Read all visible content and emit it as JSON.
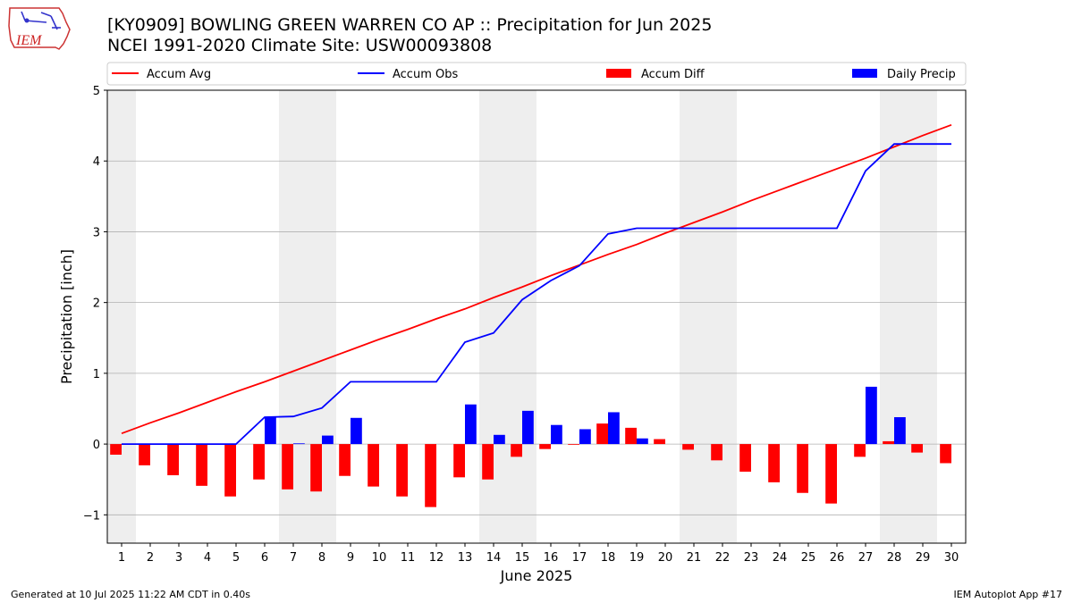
{
  "title_line1": "[KY0909] BOWLING GREEN WARREN CO AP :: Precipitation for Jun 2025",
  "title_line2": "NCEI 1991-2020 Climate Site: USW00093808",
  "logo_text": "IEM",
  "footer_left": "Generated at 10 Jul 2025 11:22 AM CDT in 0.40s",
  "footer_right": "IEM Autoplot App #17",
  "colors": {
    "avg": "#ff0000",
    "obs": "#0000ff",
    "diff": "#ff0000",
    "daily": "#0000ff",
    "weekend": "#eeeeee",
    "grid": "#b0b0b0"
  },
  "chart_data": {
    "type": "bar",
    "xlabel": "June 2025",
    "ylabel": "Precipitation [inch]",
    "x": [
      1,
      2,
      3,
      4,
      5,
      6,
      7,
      8,
      9,
      10,
      11,
      12,
      13,
      14,
      15,
      16,
      17,
      18,
      19,
      20,
      21,
      22,
      23,
      24,
      25,
      26,
      27,
      28,
      29,
      30
    ],
    "xlim": [
      0.5,
      30.5
    ],
    "ylim": [
      -1.4,
      5
    ],
    "yticks": [
      -1,
      0,
      1,
      2,
      3,
      4,
      5
    ],
    "ytick_labels": [
      "−1",
      "0",
      "1",
      "2",
      "3",
      "4",
      "5"
    ],
    "grid": "horizontal",
    "legend_placement": "top",
    "shaded_day_ranges": [
      [
        0.5,
        1.5
      ],
      [
        6.5,
        8.5
      ],
      [
        13.5,
        15.5
      ],
      [
        20.5,
        22.5
      ],
      [
        27.5,
        29.5
      ]
    ],
    "series": [
      {
        "name": "Accum Avg",
        "kind": "line",
        "color": "#ff0000",
        "values": [
          0.15,
          0.3,
          0.44,
          0.59,
          0.74,
          0.88,
          1.03,
          1.18,
          1.33,
          1.48,
          1.62,
          1.77,
          1.91,
          2.07,
          2.22,
          2.38,
          2.53,
          2.68,
          2.82,
          2.98,
          3.13,
          3.28,
          3.44,
          3.59,
          3.74,
          3.89,
          4.04,
          4.2,
          4.36,
          4.51
        ]
      },
      {
        "name": "Accum Obs",
        "kind": "line",
        "color": "#0000ff",
        "values": [
          0,
          0,
          0,
          0,
          0,
          0.38,
          0.39,
          0.51,
          0.88,
          0.88,
          0.88,
          0.88,
          1.44,
          1.57,
          2.04,
          2.31,
          2.52,
          2.97,
          3.05,
          3.05,
          3.05,
          3.05,
          3.05,
          3.05,
          3.05,
          3.05,
          3.86,
          4.24,
          4.24,
          4.24
        ]
      },
      {
        "name": "Accum Diff",
        "kind": "bar",
        "color": "#ff0000",
        "values": [
          -0.15,
          -0.3,
          -0.44,
          -0.59,
          -0.74,
          -0.5,
          -0.64,
          -0.67,
          -0.45,
          -0.6,
          -0.74,
          -0.89,
          -0.47,
          -0.5,
          -0.18,
          -0.07,
          -0.01,
          0.29,
          0.23,
          0.07,
          -0.08,
          -0.23,
          -0.39,
          -0.54,
          -0.69,
          -0.84,
          -0.18,
          0.04,
          -0.12,
          -0.27
        ]
      },
      {
        "name": "Daily Precip",
        "kind": "bar",
        "color": "#0000ff",
        "values": [
          0,
          0,
          0,
          0,
          0,
          0.38,
          0.01,
          0.12,
          0.37,
          0,
          0,
          0,
          0.56,
          0.13,
          0.47,
          0.27,
          0.21,
          0.45,
          0.08,
          0,
          0,
          0,
          0,
          0,
          0,
          0,
          0.81,
          0.38,
          0,
          0
        ]
      }
    ]
  }
}
